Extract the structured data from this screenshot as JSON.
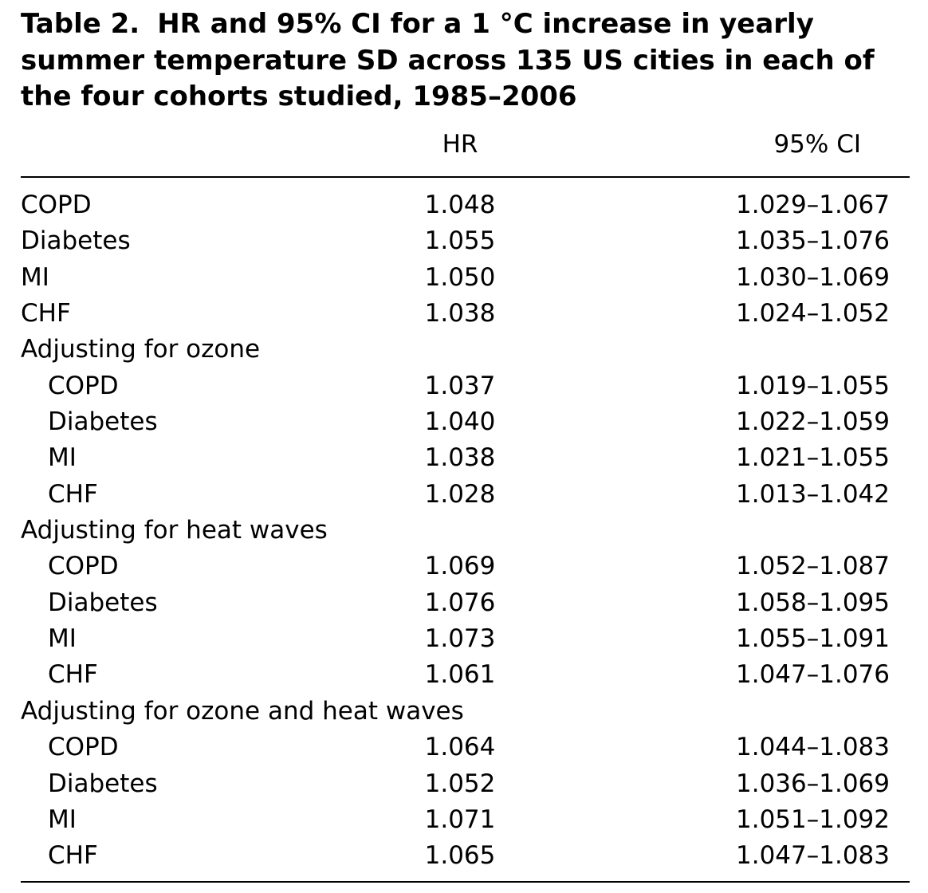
{
  "table": {
    "label": "Table 2.",
    "title": "HR and 95% CI for a 1 °C increase in yearly summer temperature SD across 135 US cities in each of the four cohorts studied, 1985–2006",
    "headers": [
      "",
      "HR",
      "95% CI"
    ],
    "rows": [
      {
        "name": "COPD",
        "hr": "1.048",
        "ci": "1.029–1.067",
        "indent": false
      },
      {
        "name": "Diabetes",
        "hr": "1.055",
        "ci": "1.035–1.076",
        "indent": false
      },
      {
        "name": "MI",
        "hr": "1.050",
        "ci": "1.030–1.069",
        "indent": false
      },
      {
        "name": "CHF",
        "hr": "1.038",
        "ci": "1.024–1.052",
        "indent": false
      },
      {
        "name": "Adjusting for ozone",
        "hr": "",
        "ci": "",
        "indent": false
      },
      {
        "name": "COPD",
        "hr": "1.037",
        "ci": "1.019–1.055",
        "indent": true
      },
      {
        "name": "Diabetes",
        "hr": "1.040",
        "ci": "1.022–1.059",
        "indent": true
      },
      {
        "name": "MI",
        "hr": "1.038",
        "ci": "1.021–1.055",
        "indent": true
      },
      {
        "name": "CHF",
        "hr": "1.028",
        "ci": "1.013–1.042",
        "indent": true
      },
      {
        "name": "Adjusting for heat waves",
        "hr": "",
        "ci": "",
        "indent": false
      },
      {
        "name": "COPD",
        "hr": "1.069",
        "ci": "1.052–1.087",
        "indent": true
      },
      {
        "name": "Diabetes",
        "hr": "1.076",
        "ci": "1.058–1.095",
        "indent": true
      },
      {
        "name": "MI",
        "hr": "1.073",
        "ci": "1.055–1.091",
        "indent": true
      },
      {
        "name": "CHF",
        "hr": "1.061",
        "ci": "1.047–1.076",
        "indent": true
      },
      {
        "name": "Adjusting for ozone and heat waves",
        "hr": "",
        "ci": "",
        "indent": false
      },
      {
        "name": "COPD",
        "hr": "1.064",
        "ci": "1.044–1.083",
        "indent": true
      },
      {
        "name": "Diabetes",
        "hr": "1.052",
        "ci": "1.036–1.069",
        "indent": true
      },
      {
        "name": "MI",
        "hr": "1.071",
        "ci": "1.051–1.092",
        "indent": true
      },
      {
        "name": "CHF",
        "hr": "1.065",
        "ci": "1.047–1.083",
        "indent": true
      }
    ]
  }
}
